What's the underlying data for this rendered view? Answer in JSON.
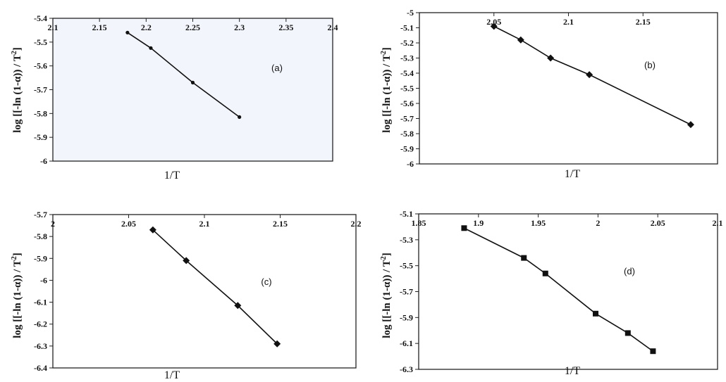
{
  "chart_data": [
    {
      "type": "line",
      "panel_label": "(a)",
      "xlabel": "1/T",
      "ylabel": "log [[-ln (1-α)) / T²]",
      "xlim": [
        2.1,
        2.4
      ],
      "ylim": [
        -6,
        -5.4
      ],
      "x_ticks": [
        "2.1",
        "2.15",
        "2.2",
        "2.25",
        "2.3",
        "2.35",
        "2.4"
      ],
      "y_ticks": [
        "-5.4",
        "-5.5",
        "-5.6",
        "-5.7",
        "-5.8",
        "-5.9",
        "-6"
      ],
      "marker": "dot",
      "background": "#f3f5fc",
      "series": [
        {
          "x": [
            2.18,
            2.205,
            2.25,
            2.3
          ],
          "y": [
            -5.46,
            -5.525,
            -5.67,
            -5.815
          ]
        }
      ]
    },
    {
      "type": "line",
      "panel_label": "(b)",
      "xlabel": "1/T",
      "ylabel": "log [[-ln (1-α)) / T²]",
      "xlim": [
        2.0,
        2.2
      ],
      "ylim": [
        -6,
        -5
      ],
      "x_ticks": [
        "2.05",
        "2.1",
        "2.15"
      ],
      "y_ticks": [
        "-5",
        "-5.1",
        "-5.2",
        "-5.3",
        "-5.4",
        "-5.5",
        "-5.6",
        "-5.7",
        "-5.8",
        "-5.9",
        "-6"
      ],
      "marker": "diamond",
      "background": "#ffffff",
      "series": [
        {
          "x": [
            2.05,
            2.068,
            2.088,
            2.114,
            2.182
          ],
          "y": [
            -5.09,
            -5.18,
            -5.3,
            -5.41,
            -5.74
          ]
        }
      ]
    },
    {
      "type": "line",
      "panel_label": "(c)",
      "xlabel": "1/T",
      "ylabel": "log [[-ln (1-α)) / T²]",
      "xlim": [
        2.0,
        2.2
      ],
      "ylim": [
        -6.4,
        -5.7
      ],
      "x_ticks": [
        "2",
        "2.05",
        "2.1",
        "2.15",
        "2.2"
      ],
      "y_ticks": [
        "-5.7",
        "-5.8",
        "-5.9",
        "-6",
        "-6.1",
        "-6.2",
        "-6.3",
        "-6.4"
      ],
      "marker": "diamond",
      "background": "#ffffff",
      "series": [
        {
          "x": [
            2.066,
            2.088,
            2.122,
            2.148
          ],
          "y": [
            -5.77,
            -5.91,
            -6.115,
            -6.29
          ]
        }
      ]
    },
    {
      "type": "line",
      "panel_label": "(d)",
      "xlabel": "1/T",
      "ylabel": "log [[-ln (1-α)) / T²]",
      "xlim": [
        1.85,
        2.1
      ],
      "ylim": [
        -6.3,
        -5.1
      ],
      "x_ticks": [
        "1.85",
        "1.9",
        "1.95",
        "2",
        "2.05",
        "2.1"
      ],
      "y_ticks": [
        "-5.1",
        "-5.3",
        "-5.5",
        "-5.7",
        "-5.9",
        "-6.1",
        "-6.3"
      ],
      "marker": "square",
      "background": "#ffffff",
      "series": [
        {
          "x": [
            1.888,
            1.938,
            1.956,
            1.998,
            2.025,
            2.046
          ],
          "y": [
            -5.21,
            -5.44,
            -5.56,
            -5.87,
            -6.02,
            -6.16
          ]
        }
      ]
    }
  ]
}
